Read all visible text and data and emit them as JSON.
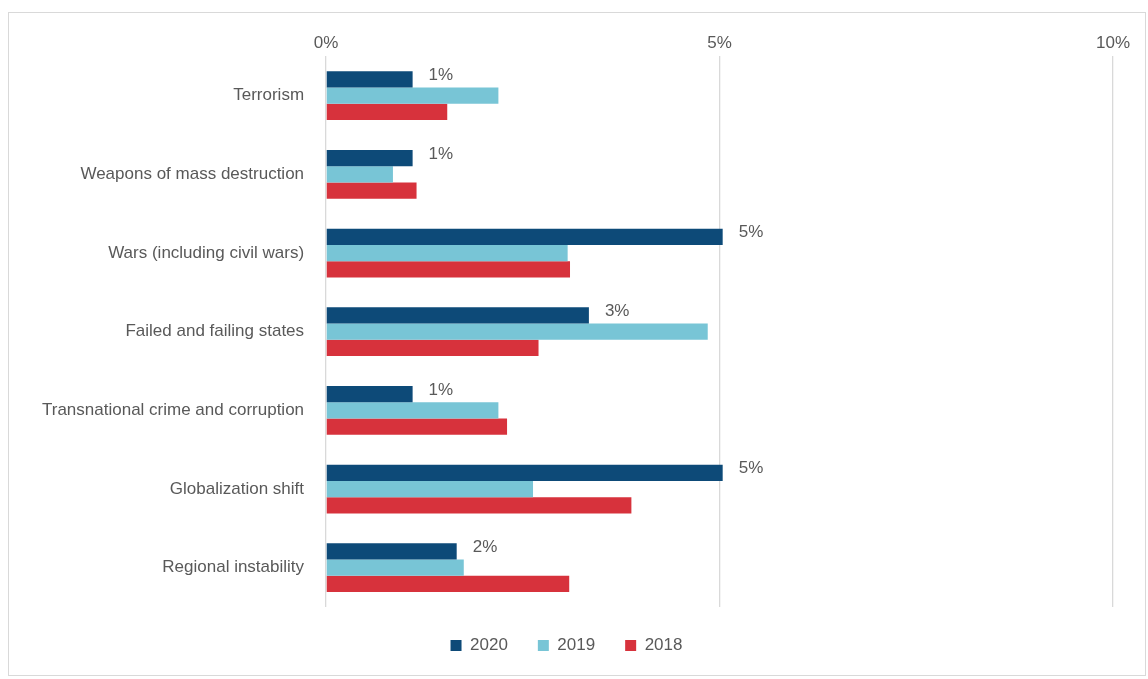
{
  "chart_data": {
    "type": "bar",
    "orientation": "horizontal",
    "categories": [
      "Terrorism",
      "Weapons of mass destruction",
      "Wars (including civil wars)",
      "Failed and failing states",
      "Transnational crime and corruption",
      "Globalization shift",
      "Regional instability"
    ],
    "series": [
      {
        "name": "2020",
        "color": "#0d4a78",
        "values": [
          1.1,
          1.1,
          5.04,
          3.34,
          1.1,
          5.04,
          1.66
        ],
        "value_labels": [
          "1%",
          "1%",
          "5%",
          "3%",
          "1%",
          "5%",
          "2%"
        ]
      },
      {
        "name": "2019",
        "color": "#78c5d6",
        "values": [
          2.19,
          0.85,
          3.07,
          4.85,
          2.19,
          2.63,
          1.75
        ]
      },
      {
        "name": "2018",
        "color": "#d7323c",
        "values": [
          1.54,
          1.15,
          3.1,
          2.7,
          2.3,
          3.88,
          3.09
        ]
      }
    ],
    "xlim": [
      0,
      10
    ],
    "xticks": [
      {
        "value": 0,
        "label": "0%"
      },
      {
        "value": 5,
        "label": "5%"
      },
      {
        "value": 10,
        "label": "10%"
      }
    ],
    "grid": "x",
    "legend": "bottom"
  }
}
